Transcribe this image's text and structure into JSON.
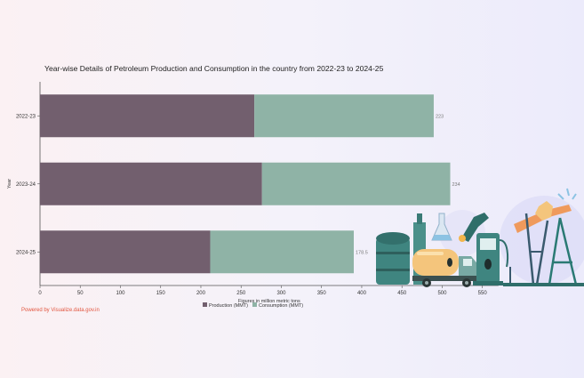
{
  "chart_data": {
    "type": "bar",
    "orientation": "horizontal",
    "stacked": true,
    "title": "Year-wise Details of Petroleum Production and Consumption in the country from 2022-23 to 2024-25",
    "xlabel": "Figures in million metric tons",
    "ylabel": "Year",
    "categories": [
      "2022-23",
      "2023-24",
      "2024-25"
    ],
    "series": [
      {
        "name": "Production (MMT)",
        "values": [
          266.5,
          276,
          211.6
        ],
        "labels": [
          "266.5",
          "276",
          "211.6"
        ],
        "color": "#725f6e"
      },
      {
        "name": "Consumption (MMT)",
        "values": [
          223,
          234,
          178.5
        ],
        "labels": [
          "223",
          "234",
          "178.5"
        ],
        "color": "#8fb3a6"
      }
    ],
    "xlim": [
      0,
      570
    ],
    "xticks": [
      0,
      50,
      100,
      150,
      200,
      250,
      300,
      350,
      400,
      450,
      500,
      550
    ],
    "legend_position": "bottom",
    "grid": false
  },
  "footer": {
    "powered_by": "Powered by Visualize.data.gov.in"
  },
  "decoration": {
    "icons": [
      "oil-refinery-illustration",
      "fuel-pump-icon",
      "tanker-truck-icon",
      "oil-pumpjack-icon"
    ]
  }
}
